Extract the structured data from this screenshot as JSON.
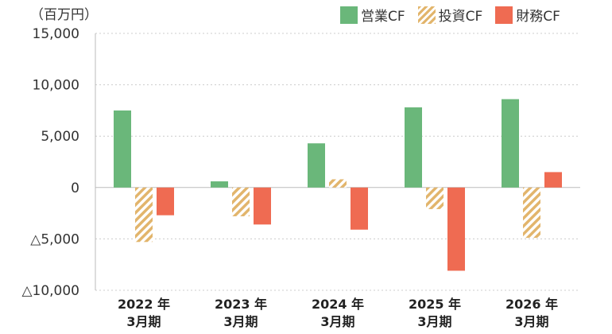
{
  "unit_label": "（百万円）",
  "colors": {
    "operating": "#6ab77a",
    "investing": "#e2b56c",
    "financing": "#ef6b52",
    "grid": "#cccccc"
  },
  "chart_data": {
    "type": "bar",
    "title": "",
    "categories": [
      [
        "2022 年",
        "3月期"
      ],
      [
        "2023 年",
        "3月期"
      ],
      [
        "2024 年",
        "3月期"
      ],
      [
        "2025 年",
        "3月期"
      ],
      [
        "2026 年",
        "3月期"
      ]
    ],
    "series": [
      {
        "name": "営業CF",
        "values": [
          7500,
          600,
          4300,
          7800,
          8600
        ]
      },
      {
        "name": "投資CF",
        "values": [
          -5300,
          -2800,
          800,
          -2100,
          -4900
        ]
      },
      {
        "name": "財務CF",
        "values": [
          -2700,
          -3600,
          -4100,
          -8100,
          1500
        ]
      }
    ],
    "ylim": [
      -10000,
      15000
    ],
    "yticks": [
      {
        "value": 15000,
        "label": "15,000"
      },
      {
        "value": 10000,
        "label": "10,000"
      },
      {
        "value": 5000,
        "label": "5,000"
      },
      {
        "value": 0,
        "label": "0"
      },
      {
        "value": -5000,
        "label": "△5,000"
      },
      {
        "value": -10000,
        "label": "△10,000"
      }
    ],
    "grid": true,
    "legend_position": "top-right"
  }
}
